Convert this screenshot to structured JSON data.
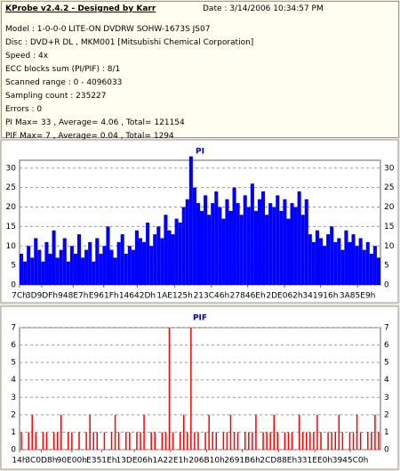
{
  "header": {
    "title": "KProbe v2.4.2 - Designed by Karr",
    "date": "Date : 3/14/2006 10:34:57 PM",
    "lines": [
      "Model : 1-0-0-0 LITE-ON DVDRW SOHW-1673S JS07",
      "Disc : DVD+R DL , MKM001 [Mitsubishi Chemical Corporation]",
      "Speed : 4x",
      "ECC blocks sum (PI/PIF) : 8/1",
      "Scanned range : 0 - 4096033",
      "Sampling count : 235227",
      "Errors : 0",
      "PI Max= 33 , Average= 4.06 , Total= 121154",
      "PIF Max= 7 , Average= 0.04 , Total= 1294"
    ]
  },
  "chart_data": [
    {
      "type": "bar",
      "title": "PI",
      "color": "#0000ff",
      "grid": true,
      "ylim": [
        0,
        32
      ],
      "yticks": [
        0,
        5,
        10,
        15,
        20,
        25,
        30
      ],
      "xlim": [
        0,
        4096033
      ],
      "xticks": [
        {
          "value": 124,
          "label": "7Ch"
        },
        {
          "value": 252383,
          "label": "3D9DFh"
        },
        {
          "value": 608487,
          "label": "948E7h"
        },
        {
          "value": 955935,
          "label": "E961Fh"
        },
        {
          "value": 1336365,
          "label": "14642Dh"
        },
        {
          "value": 1761573,
          "label": "1AE125h"
        },
        {
          "value": 2178118,
          "label": "213C46h"
        },
        {
          "value": 2589806,
          "label": "27846Eh"
        },
        {
          "value": 3006562,
          "label": "2DE062h"
        },
        {
          "value": 3414294,
          "label": "341916h"
        },
        {
          "value": 3835369,
          "label": "3A85E9h"
        }
      ],
      "values": [
        8,
        6,
        10,
        7,
        12,
        9,
        6,
        11,
        8,
        14,
        7,
        9,
        12,
        6,
        10,
        8,
        13,
        7,
        9,
        11,
        6,
        12,
        8,
        10,
        15,
        9,
        7,
        11,
        13,
        8,
        10,
        9,
        14,
        12,
        11,
        16,
        10,
        13,
        15,
        12,
        18,
        14,
        13,
        17,
        16,
        20,
        22,
        33,
        25,
        21,
        19,
        23,
        18,
        21,
        24,
        20,
        17,
        22,
        19,
        25,
        21,
        18,
        23,
        20,
        26,
        19,
        22,
        24,
        18,
        21,
        20,
        23,
        19,
        22,
        17,
        21,
        20,
        24,
        18,
        22,
        13,
        11,
        14,
        12,
        10,
        13,
        15,
        11,
        12,
        9,
        14,
        11,
        13,
        10,
        12,
        9,
        11,
        8,
        10,
        7
      ]
    },
    {
      "type": "bar",
      "title": "PIF",
      "color": "#ff0000",
      "grid": true,
      "ylim": [
        0,
        7
      ],
      "yticks": [
        0,
        1,
        2,
        3,
        4,
        5,
        6,
        7
      ],
      "xlim": [
        0,
        4096033
      ],
      "xticks": [
        {
          "value": 20,
          "label": "14h"
        },
        {
          "value": 245976,
          "label": "3C0D8h"
        },
        {
          "value": 593408,
          "label": "90E00h"
        },
        {
          "value": 931102,
          "label": "E351Eh"
        },
        {
          "value": 1302022,
          "label": "13DE06h"
        },
        {
          "value": 1712865,
          "label": "1A22E1h"
        },
        {
          "value": 2124560,
          "label": "206B10h"
        },
        {
          "value": 2527670,
          "label": "2691B6h"
        },
        {
          "value": 2939022,
          "label": "2CD88Eh"
        },
        {
          "value": 3350240,
          "label": "331EE0h"
        },
        {
          "value": 3753408,
          "label": "3945C0h"
        }
      ],
      "values": [
        1,
        0,
        1,
        2,
        1,
        0,
        1,
        1,
        0,
        1,
        1,
        2,
        0,
        1,
        1,
        0,
        1,
        0,
        1,
        2,
        1,
        1,
        0,
        1,
        0,
        1,
        2,
        1,
        0,
        1,
        1,
        0,
        1,
        1,
        2,
        0,
        1,
        1,
        0,
        1,
        1,
        7,
        1,
        0,
        1,
        2,
        1,
        7,
        1,
        1,
        0,
        1,
        2,
        1,
        1,
        0,
        1,
        1,
        2,
        1,
        1,
        0,
        1,
        1,
        1,
        2,
        0,
        1,
        1,
        1,
        2,
        1,
        0,
        1,
        1,
        1,
        0,
        2,
        1,
        1,
        1,
        1,
        2,
        1,
        0,
        1,
        1,
        1,
        2,
        1,
        0,
        1,
        1,
        2,
        1,
        0,
        1,
        1,
        2,
        1
      ]
    }
  ]
}
